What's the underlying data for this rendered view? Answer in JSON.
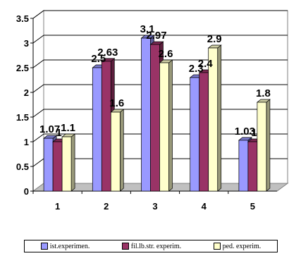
{
  "chart_data": {
    "type": "bar",
    "style": "3d-clustered-column",
    "categories": [
      "1",
      "2",
      "3",
      "4",
      "5"
    ],
    "series": [
      {
        "name": "ist.experimen.",
        "values": [
          1.07,
          2.5,
          3.1,
          2.3,
          1.03
        ],
        "color": "#9999ff",
        "labels": [
          "1.07",
          "2.5",
          "3.1",
          "2.3",
          "1.03"
        ]
      },
      {
        "name": "fil.lb.str. experim.",
        "values": [
          1,
          2.63,
          2.97,
          2.4,
          1
        ],
        "color": "#993366",
        "labels": [
          "1",
          "2.63",
          "2.97",
          "2.4",
          "1"
        ]
      },
      {
        "name": "ped. experim.",
        "values": [
          1.1,
          1.6,
          2.6,
          2.9,
          1.8
        ],
        "color": "#ffffcc",
        "labels": [
          "1.1",
          "1.6",
          "2.6",
          "2.9",
          "1.8"
        ]
      }
    ],
    "yticks": [
      "0",
      "0.5",
      "1",
      "1.5",
      "2",
      "2.5",
      "3",
      "3.5"
    ],
    "ylim": [
      0,
      3.5
    ],
    "grid": true,
    "legend": "bottom"
  }
}
